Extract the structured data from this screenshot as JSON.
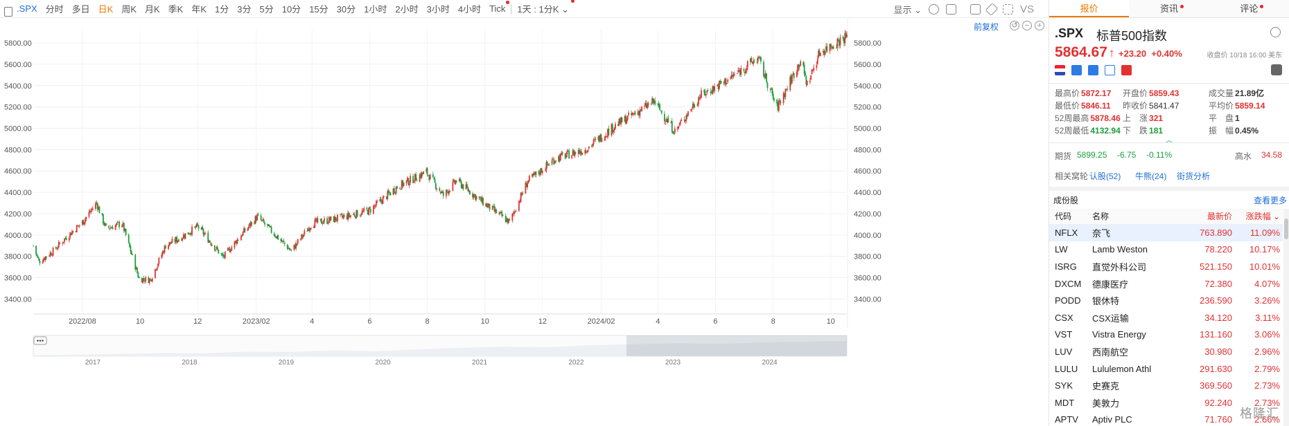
{
  "toolbar": {
    "symbol": ".SPX",
    "periods": [
      {
        "label": "分时",
        "active": false,
        "dot": false
      },
      {
        "label": "多日",
        "active": false,
        "dot": false
      },
      {
        "label": "日K",
        "active": true,
        "dot": false
      },
      {
        "label": "周K",
        "active": false,
        "dot": false
      },
      {
        "label": "月K",
        "active": false,
        "dot": false
      },
      {
        "label": "季K",
        "active": false,
        "dot": false
      },
      {
        "label": "年K",
        "active": false,
        "dot": false
      },
      {
        "label": "1分",
        "active": false,
        "dot": false
      },
      {
        "label": "3分",
        "active": false,
        "dot": false
      },
      {
        "label": "5分",
        "active": false,
        "dot": false
      },
      {
        "label": "10分",
        "active": false,
        "dot": false
      },
      {
        "label": "15分",
        "active": false,
        "dot": false
      },
      {
        "label": "30分",
        "active": false,
        "dot": false
      },
      {
        "label": "1小时",
        "active": false,
        "dot": false
      },
      {
        "label": "2小时",
        "active": false,
        "dot": false
      },
      {
        "label": "3小时",
        "active": false,
        "dot": false
      },
      {
        "label": "4小时",
        "active": false,
        "dot": false
      },
      {
        "label": "Tick",
        "active": false,
        "dot": true
      }
    ],
    "custom_period": "1天 : 1分K",
    "display_label": "显示",
    "vs_label": "VS",
    "fq_label": "前复权"
  },
  "chart_data": {
    "type": "candlestick",
    "y_ticks": [
      3400,
      3600,
      3800,
      4000,
      4200,
      4400,
      4600,
      4800,
      5000,
      5200,
      5400,
      5600,
      5800
    ],
    "y_tick_labels": [
      "3400.00",
      "3600.00",
      "3800.00",
      "4000.00",
      "4200.00",
      "4400.00",
      "4600.00",
      "4800.00",
      "5000.00",
      "5200.00",
      "5400.00",
      "5600.00",
      "5800.00"
    ],
    "ylim": [
      3260,
      5930
    ],
    "x_range": [
      "2022-06-10",
      "2024-10-18"
    ],
    "x_labels": [
      {
        "date": "2022-08-01",
        "label": "2022/08"
      },
      {
        "date": "2022-10-01",
        "label": "10"
      },
      {
        "date": "2022-12-01",
        "label": "12"
      },
      {
        "date": "2023-02-01",
        "label": "2023/02"
      },
      {
        "date": "2023-04-01",
        "label": "4"
      },
      {
        "date": "2023-06-01",
        "label": "6"
      },
      {
        "date": "2023-08-01",
        "label": "8"
      },
      {
        "date": "2023-10-01",
        "label": "10"
      },
      {
        "date": "2023-12-01",
        "label": "12"
      },
      {
        "date": "2024-02-01",
        "label": "2024/02"
      },
      {
        "date": "2024-04-01",
        "label": "4"
      },
      {
        "date": "2024-06-01",
        "label": "6"
      },
      {
        "date": "2024-08-01",
        "label": "8"
      },
      {
        "date": "2024-10-01",
        "label": "10"
      }
    ],
    "close_path": [
      {
        "date": "2022-06-10",
        "close": 3900
      },
      {
        "date": "2022-06-16",
        "close": 3750
      },
      {
        "date": "2022-07-01",
        "close": 3850
      },
      {
        "date": "2022-07-15",
        "close": 3980
      },
      {
        "date": "2022-08-01",
        "close": 4120
      },
      {
        "date": "2022-08-16",
        "close": 4300
      },
      {
        "date": "2022-08-26",
        "close": 4060
      },
      {
        "date": "2022-09-12",
        "close": 4110
      },
      {
        "date": "2022-09-30",
        "close": 3590
      },
      {
        "date": "2022-10-12",
        "close": 3580
      },
      {
        "date": "2022-10-28",
        "close": 3900
      },
      {
        "date": "2022-11-10",
        "close": 3960
      },
      {
        "date": "2022-12-01",
        "close": 4080
      },
      {
        "date": "2022-12-28",
        "close": 3790
      },
      {
        "date": "2023-01-15",
        "close": 3990
      },
      {
        "date": "2023-02-02",
        "close": 4170
      },
      {
        "date": "2023-03-10",
        "close": 3850
      },
      {
        "date": "2023-04-01",
        "close": 4110
      },
      {
        "date": "2023-05-01",
        "close": 4160
      },
      {
        "date": "2023-06-01",
        "close": 4230
      },
      {
        "date": "2023-06-30",
        "close": 4450
      },
      {
        "date": "2023-07-31",
        "close": 4590
      },
      {
        "date": "2023-08-18",
        "close": 4370
      },
      {
        "date": "2023-09-01",
        "close": 4510
      },
      {
        "date": "2023-10-01",
        "close": 4290
      },
      {
        "date": "2023-10-27",
        "close": 4120
      },
      {
        "date": "2023-11-15",
        "close": 4500
      },
      {
        "date": "2023-12-15",
        "close": 4720
      },
      {
        "date": "2024-01-15",
        "close": 4800
      },
      {
        "date": "2024-02-15",
        "close": 5020
      },
      {
        "date": "2024-03-28",
        "close": 5250
      },
      {
        "date": "2024-04-19",
        "close": 4970
      },
      {
        "date": "2024-05-15",
        "close": 5300
      },
      {
        "date": "2024-06-15",
        "close": 5460
      },
      {
        "date": "2024-07-16",
        "close": 5660
      },
      {
        "date": "2024-08-05",
        "close": 5190
      },
      {
        "date": "2024-08-30",
        "close": 5640
      },
      {
        "date": "2024-09-06",
        "close": 5410
      },
      {
        "date": "2024-09-19",
        "close": 5710
      },
      {
        "date": "2024-10-18",
        "close": 5864.67
      }
    ],
    "navigator_years": [
      "2017",
      "2018",
      "2019",
      "2020",
      "2021",
      "2022",
      "2023",
      "2024"
    ]
  },
  "quote": {
    "tabs": [
      {
        "label": "报价",
        "active": true,
        "dot": false
      },
      {
        "label": "资讯",
        "active": false,
        "dot": true
      },
      {
        "label": "评论",
        "active": false,
        "dot": true
      }
    ],
    "symbol": ".SPX",
    "name": "标普500指数",
    "price": "5864.67",
    "arrow": "↑",
    "change": "+23.20",
    "change_pct": "+0.40%",
    "status": "收盘价 10/18 16:00 美东",
    "stats": {
      "high_k": "最高价",
      "high_v": "5872.17",
      "open_k": "开盘价",
      "open_v": "5859.43",
      "vol_k": "成交量",
      "vol_v": "21.89亿",
      "low_k": "最低价",
      "low_v": "5846.11",
      "prev_k": "昨收价",
      "prev_v": "5841.47",
      "avg_k": "平均价",
      "avg_v": "5859.14",
      "h52_k": "52周最高",
      "h52_v": "5878.46",
      "up_k": "上　涨",
      "up_v": "321",
      "flat_k": "平　盘",
      "flat_v": "1",
      "l52_k": "52周最低",
      "l52_v": "4132.94",
      "down_k": "下　跌",
      "down_v": "181",
      "amp_k": "振　幅",
      "amp_v": "0.45%"
    },
    "futures": {
      "label": "期货",
      "price": "5899.25",
      "chg": "-6.75",
      "pct": "-0.11%",
      "premium_k": "高水",
      "premium_v": "34.58"
    },
    "related": {
      "label": "相关窝轮",
      "call": "认股(52)",
      "bull": "牛熊(24)",
      "street": "街货分析"
    },
    "constituents": {
      "title": "成份股",
      "more": "查看更多",
      "headers": [
        "代码",
        "名称",
        "最新价",
        "涨跌幅"
      ],
      "rows": [
        {
          "code": "NFLX",
          "name": "奈飞",
          "price": "763.890",
          "pct": "11.09%"
        },
        {
          "code": "LW",
          "name": "Lamb Weston",
          "price": "78.220",
          "pct": "10.17%"
        },
        {
          "code": "ISRG",
          "name": "直觉外科公司",
          "price": "521.150",
          "pct": "10.01%"
        },
        {
          "code": "DXCM",
          "name": "德康医疗",
          "price": "72.380",
          "pct": "4.07%"
        },
        {
          "code": "PODD",
          "name": "银休特",
          "price": "236.590",
          "pct": "3.26%"
        },
        {
          "code": "CSX",
          "name": "CSX运输",
          "price": "34.120",
          "pct": "3.11%"
        },
        {
          "code": "VST",
          "name": "Vistra Energy",
          "price": "131.160",
          "pct": "3.06%"
        },
        {
          "code": "LUV",
          "name": "西南航空",
          "price": "30.980",
          "pct": "2.96%"
        },
        {
          "code": "LULU",
          "name": "Lululemon Athl",
          "price": "291.630",
          "pct": "2.79%"
        },
        {
          "code": "SYK",
          "name": "史赛克",
          "price": "369.560",
          "pct": "2.73%"
        },
        {
          "code": "MDT",
          "name": "美敦力",
          "price": "92.240",
          "pct": "2.73%"
        },
        {
          "code": "APTV",
          "name": "Aptiv PLC",
          "price": "71.760",
          "pct": "2.66%"
        }
      ]
    },
    "watermark": "格隆汇"
  },
  "colors": {
    "up": "#e23131",
    "down": "#1a9e3c",
    "accent": "#f07800",
    "link": "#1e6fd9"
  }
}
